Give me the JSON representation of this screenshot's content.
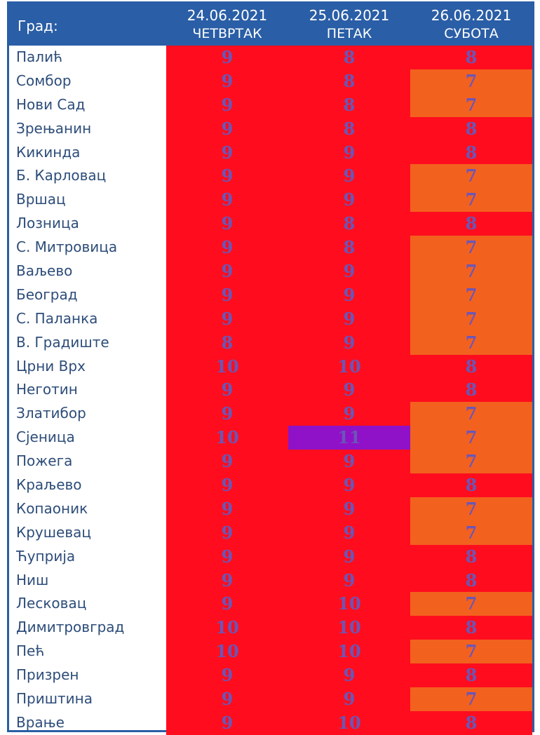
{
  "header": {
    "city_label": "Град:",
    "days": [
      {
        "date": "24.06.2021",
        "weekday": "ЧЕТВРТАК"
      },
      {
        "date": "25.06.2021",
        "weekday": "ПЕТАК"
      },
      {
        "date": "26.06.2021",
        "weekday": "СУБОТА"
      }
    ]
  },
  "colors": {
    "header": "#2a5ea6",
    "uv_8_10": "#ff0d1e",
    "uv_6_7": "#f3611f",
    "uv_11": "#8f12c8",
    "number_text": "#6a56b8",
    "city_text": "#2d4d7a"
  },
  "rows": [
    {
      "city": "Палић",
      "values": [
        "9",
        "8",
        "8"
      ]
    },
    {
      "city": "Сомбор",
      "values": [
        "9",
        "8",
        "7"
      ]
    },
    {
      "city": "Нови Сад",
      "values": [
        "9",
        "8",
        "7"
      ]
    },
    {
      "city": "Зрењанин",
      "values": [
        "9",
        "8",
        "8"
      ]
    },
    {
      "city": "Кикинда",
      "values": [
        "9",
        "9",
        "8"
      ]
    },
    {
      "city": "Б. Карловац",
      "values": [
        "9",
        "9",
        "7"
      ]
    },
    {
      "city": "Вршац",
      "values": [
        "9",
        "9",
        "7"
      ]
    },
    {
      "city": "Лозница",
      "values": [
        "9",
        "8",
        "8"
      ]
    },
    {
      "city": "С. Митровица",
      "values": [
        "9",
        "8",
        "7"
      ]
    },
    {
      "city": "Ваљево",
      "values": [
        "9",
        "9",
        "7"
      ]
    },
    {
      "city": "Београд",
      "values": [
        "9",
        "9",
        "7"
      ]
    },
    {
      "city": "С. Паланка",
      "values": [
        "9",
        "9",
        "7"
      ]
    },
    {
      "city": "В. Градиште",
      "values": [
        "8",
        "9",
        "7"
      ]
    },
    {
      "city": "Црни Врх",
      "values": [
        "10",
        "10",
        "8"
      ]
    },
    {
      "city": "Неготин",
      "values": [
        "9",
        "9",
        "8"
      ]
    },
    {
      "city": "Златибор",
      "values": [
        "9",
        "9",
        "7"
      ]
    },
    {
      "city": "Сјеница",
      "values": [
        "10",
        "11",
        "7"
      ]
    },
    {
      "city": "Пожега",
      "values": [
        "9",
        "9",
        "7"
      ]
    },
    {
      "city": "Краљево",
      "values": [
        "9",
        "9",
        "8"
      ]
    },
    {
      "city": "Копаоник",
      "values": [
        "9",
        "9",
        "7"
      ]
    },
    {
      "city": "Крушевац",
      "values": [
        "9",
        "9",
        "7"
      ]
    },
    {
      "city": "Ћуприја",
      "values": [
        "9",
        "9",
        "8"
      ]
    },
    {
      "city": "Ниш",
      "values": [
        "9",
        "9",
        "8"
      ]
    },
    {
      "city": "Лесковац",
      "values": [
        "9",
        "10",
        "7"
      ]
    },
    {
      "city": "Димитровград",
      "values": [
        "10",
        "10",
        "8"
      ]
    },
    {
      "city": "Пећ",
      "values": [
        "10",
        "10",
        "7"
      ]
    },
    {
      "city": "Призрен",
      "values": [
        "9",
        "9",
        "8"
      ]
    },
    {
      "city": "Приштина",
      "values": [
        "9",
        "9",
        "7"
      ]
    },
    {
      "city": "Врање",
      "values": [
        "9",
        "10",
        "8"
      ]
    }
  ]
}
